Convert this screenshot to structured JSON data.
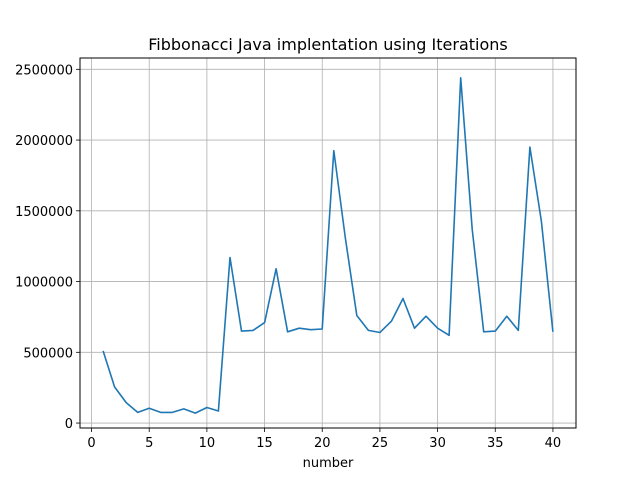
{
  "chart_data": {
    "type": "line",
    "title": "Fibbonacci Java implentation using Iterations",
    "xlabel": "number",
    "ylabel": "",
    "xlim": [
      -1,
      42
    ],
    "ylim": [
      -35000,
      2580000
    ],
    "xticks": [
      0,
      5,
      10,
      15,
      20,
      25,
      30,
      35,
      40
    ],
    "yticks": [
      0,
      500000,
      1000000,
      1500000,
      2000000,
      2500000
    ],
    "grid": true,
    "series": [
      {
        "color": "#1f77b4",
        "x": [
          1,
          2,
          3,
          4,
          5,
          6,
          7,
          8,
          9,
          10,
          11,
          12,
          13,
          14,
          15,
          16,
          17,
          18,
          19,
          20,
          21,
          22,
          23,
          24,
          25,
          26,
          27,
          28,
          29,
          30,
          31,
          32,
          33,
          34,
          35,
          36,
          37,
          38,
          39,
          40
        ],
        "y": [
          510000,
          255000,
          145000,
          75000,
          105000,
          75000,
          75000,
          100000,
          70000,
          110000,
          85000,
          1170000,
          650000,
          655000,
          710000,
          1090000,
          645000,
          670000,
          660000,
          665000,
          1925000,
          1310000,
          760000,
          655000,
          640000,
          720000,
          880000,
          670000,
          755000,
          670000,
          620000,
          2440000,
          1370000,
          645000,
          650000,
          755000,
          655000,
          1950000,
          1425000,
          645000
        ]
      }
    ]
  }
}
